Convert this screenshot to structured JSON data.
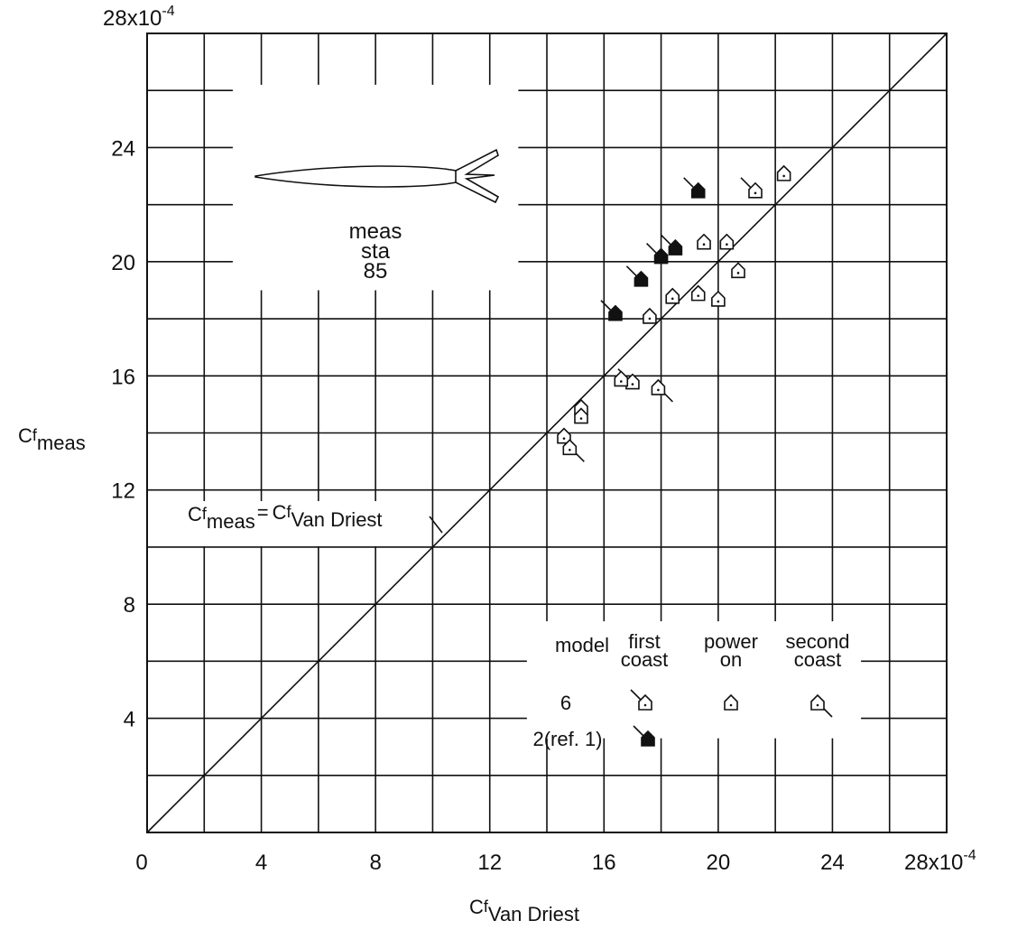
{
  "chart_data": {
    "type": "scatter",
    "title": "",
    "xlabel": {
      "main": "C",
      "sub": "f",
      "subsub": "Van Driest"
    },
    "ylabel": {
      "main": "C",
      "sub": "f",
      "subsub": "meas"
    },
    "xlim": [
      0,
      28
    ],
    "ylim": [
      0,
      28
    ],
    "scale_label": "28x10",
    "scale_exp": "-4",
    "grid": true,
    "x_ticks": [
      "0",
      "4",
      "8",
      "12",
      "16",
      "20",
      "24"
    ],
    "y_ticks": [
      "4",
      "8",
      "12",
      "16",
      "20",
      "24"
    ],
    "reference_line": {
      "label_main": "C",
      "label_sub1": "f",
      "label_subsub1": "meas",
      "label_eq": "=",
      "label_sub2": "f",
      "label_subsub2": "Van Driest"
    },
    "inset": {
      "label_lines": [
        "meas",
        "sta",
        "85"
      ]
    },
    "legend": {
      "headers": [
        {
          "lines": [
            "model"
          ]
        },
        {
          "lines": [
            "first",
            "coast"
          ]
        },
        {
          "lines": [
            "power",
            "on"
          ]
        },
        {
          "lines": [
            "second",
            "coast"
          ]
        }
      ],
      "rows": [
        {
          "label": "6"
        },
        {
          "label": "2(ref. 1)"
        }
      ]
    },
    "series": [
      {
        "model": "2",
        "phase": "first coast",
        "solid": true,
        "points": [
          [
            16.4,
            18.2
          ],
          [
            17.3,
            19.4
          ],
          [
            18.0,
            20.2
          ],
          [
            18.5,
            20.5
          ],
          [
            19.3,
            22.5
          ]
        ]
      },
      {
        "model": "6",
        "phase": "first coast",
        "solid": false,
        "points": [
          [
            21.3,
            22.5
          ],
          [
            17.0,
            15.8
          ]
        ]
      },
      {
        "model": "6",
        "phase": "power on",
        "solid": false,
        "points": [
          [
            22.3,
            23.1
          ],
          [
            19.5,
            20.7
          ],
          [
            20.3,
            20.7
          ],
          [
            20.7,
            19.7
          ],
          [
            18.4,
            18.8
          ],
          [
            19.3,
            18.9
          ],
          [
            20.0,
            18.7
          ],
          [
            17.6,
            18.1
          ],
          [
            16.6,
            15.9
          ],
          [
            14.6,
            13.9
          ],
          [
            15.2,
            14.9
          ],
          [
            15.2,
            14.6
          ]
        ]
      },
      {
        "model": "6",
        "phase": "second coast",
        "solid": false,
        "points": [
          [
            17.9,
            15.6
          ],
          [
            14.8,
            13.5
          ]
        ]
      }
    ]
  }
}
